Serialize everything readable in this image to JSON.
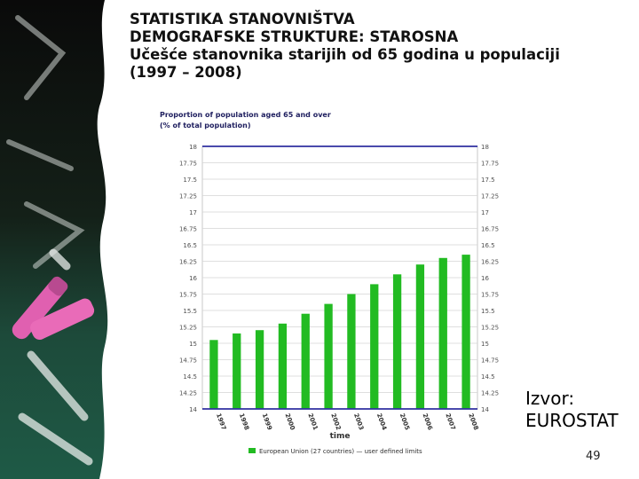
{
  "slide": {
    "title_lines": [
      "STATISTIKA STANOVNIŠTVA",
      "DEMOGRAFSKE STRUKTURE: STAROSNA",
      "Učešće stanovnika starijih od 65 godina u populaciji",
      "(1997 – 2008)"
    ],
    "source": "Izvor:",
    "source_name": "EUROSTAT",
    "page_number": "49"
  },
  "chart_data": {
    "type": "bar",
    "title": "Proportion of population aged 65 and over",
    "subtitle": "(% of total population)",
    "xlabel": "time",
    "ylabel": "",
    "categories": [
      "1997",
      "1998",
      "1999",
      "2000",
      "2001",
      "2002",
      "2003",
      "2004",
      "2005",
      "2006",
      "2007",
      "2008"
    ],
    "series": [
      {
        "name": "European Union (27 countries) — user defined limits",
        "values": [
          15.05,
          15.15,
          15.2,
          15.3,
          15.45,
          15.6,
          15.75,
          15.9,
          16.05,
          16.2,
          16.3,
          16.35
        ]
      }
    ],
    "ylim": [
      14,
      18
    ],
    "yticks": [
      "14",
      "14.25",
      "14.5",
      "14.75",
      "15",
      "15.25",
      "15.5",
      "15.75",
      "16",
      "16.25",
      "16.5",
      "16.75",
      "17",
      "17.25",
      "17.5",
      "17.75",
      "18"
    ],
    "reference_lines": [
      18,
      14
    ],
    "grid": true,
    "legend_position": "bottom",
    "colors": {
      "bars": "#22bb22",
      "limit_lines": "#3030a0",
      "grid": "#d4d4d4"
    }
  }
}
